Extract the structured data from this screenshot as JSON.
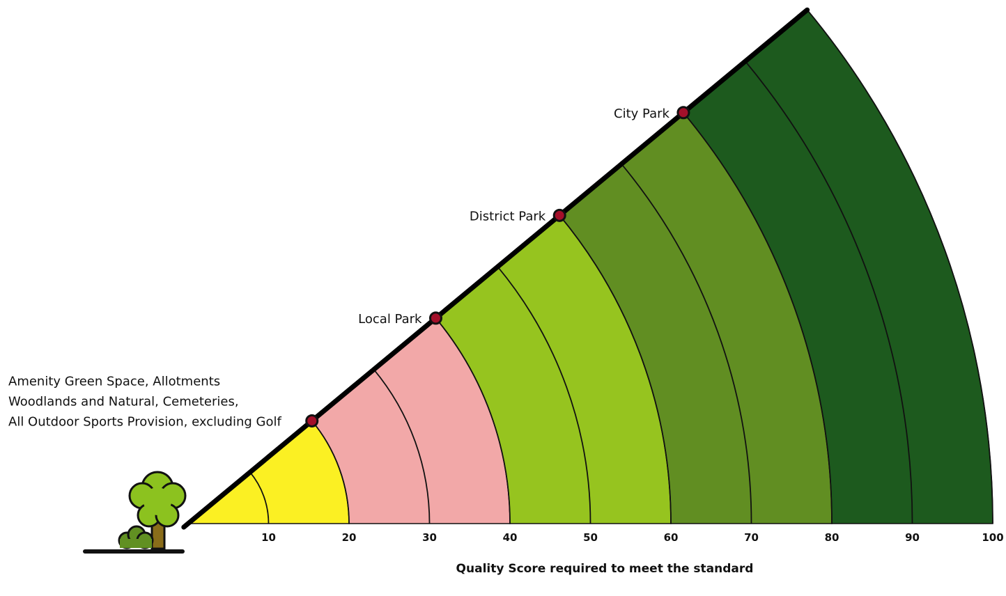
{
  "chart_data": {
    "type": "sector",
    "x_label": "Quality Score required to meet the standard",
    "xlim": [
      0,
      100
    ],
    "xticks": [
      10,
      20,
      30,
      40,
      50,
      60,
      70,
      80,
      90,
      100
    ],
    "bands": [
      {
        "from": 0,
        "to": 20,
        "color": "#fbf023"
      },
      {
        "from": 20,
        "to": 40,
        "color": "#f2a8a8"
      },
      {
        "from": 40,
        "to": 60,
        "color": "#96c41f"
      },
      {
        "from": 60,
        "to": 80,
        "color": "#618e22"
      },
      {
        "from": 80,
        "to": 100,
        "color": "#1d5a1e"
      }
    ],
    "marker_color": "#a3102a",
    "markers": [
      {
        "value": 20,
        "lines": [
          "Amenity Green Space, Allotments",
          "Woodlands and Natural, Cemeteries,",
          "All Outdoor Sports Provision, excluding Golf"
        ]
      },
      {
        "value": 40,
        "lines": [
          "Local Park"
        ]
      },
      {
        "value": 60,
        "lines": [
          "District Park"
        ]
      },
      {
        "value": 80,
        "lines": [
          "City Park"
        ]
      }
    ]
  }
}
